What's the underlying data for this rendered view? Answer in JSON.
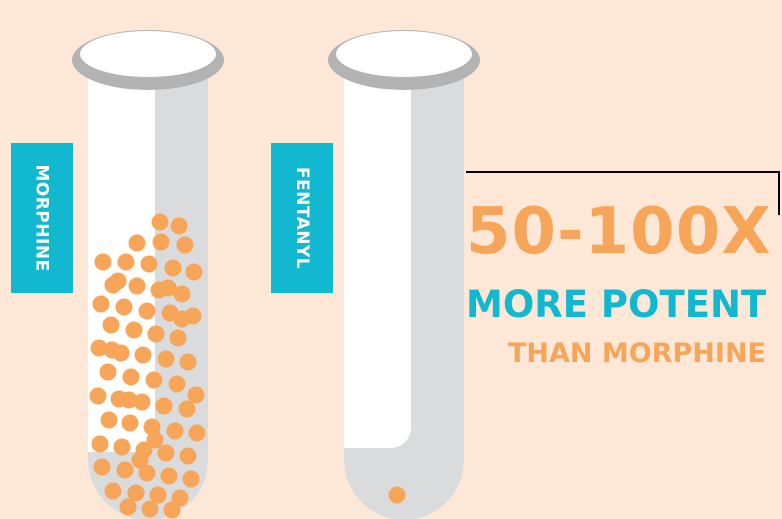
{
  "labels": {
    "tube_left": "MORPHINE",
    "tube_right": "FENTANYL"
  },
  "headline": {
    "multiplier": "50-100X",
    "line2": "MORE POTENT",
    "line3": "THAN  MORPHINE"
  },
  "counts": {
    "morphine_dots": 67,
    "fentanyl_dots": 1
  },
  "colors": {
    "background": "#fde8d8",
    "accent_orange": "#f7a559",
    "accent_teal": "#11b8cf",
    "tube_white": "#ffffff",
    "tube_shadow": "#dadbdc",
    "rim_gray": "#b8b8b8",
    "connector_line": "#000000"
  }
}
